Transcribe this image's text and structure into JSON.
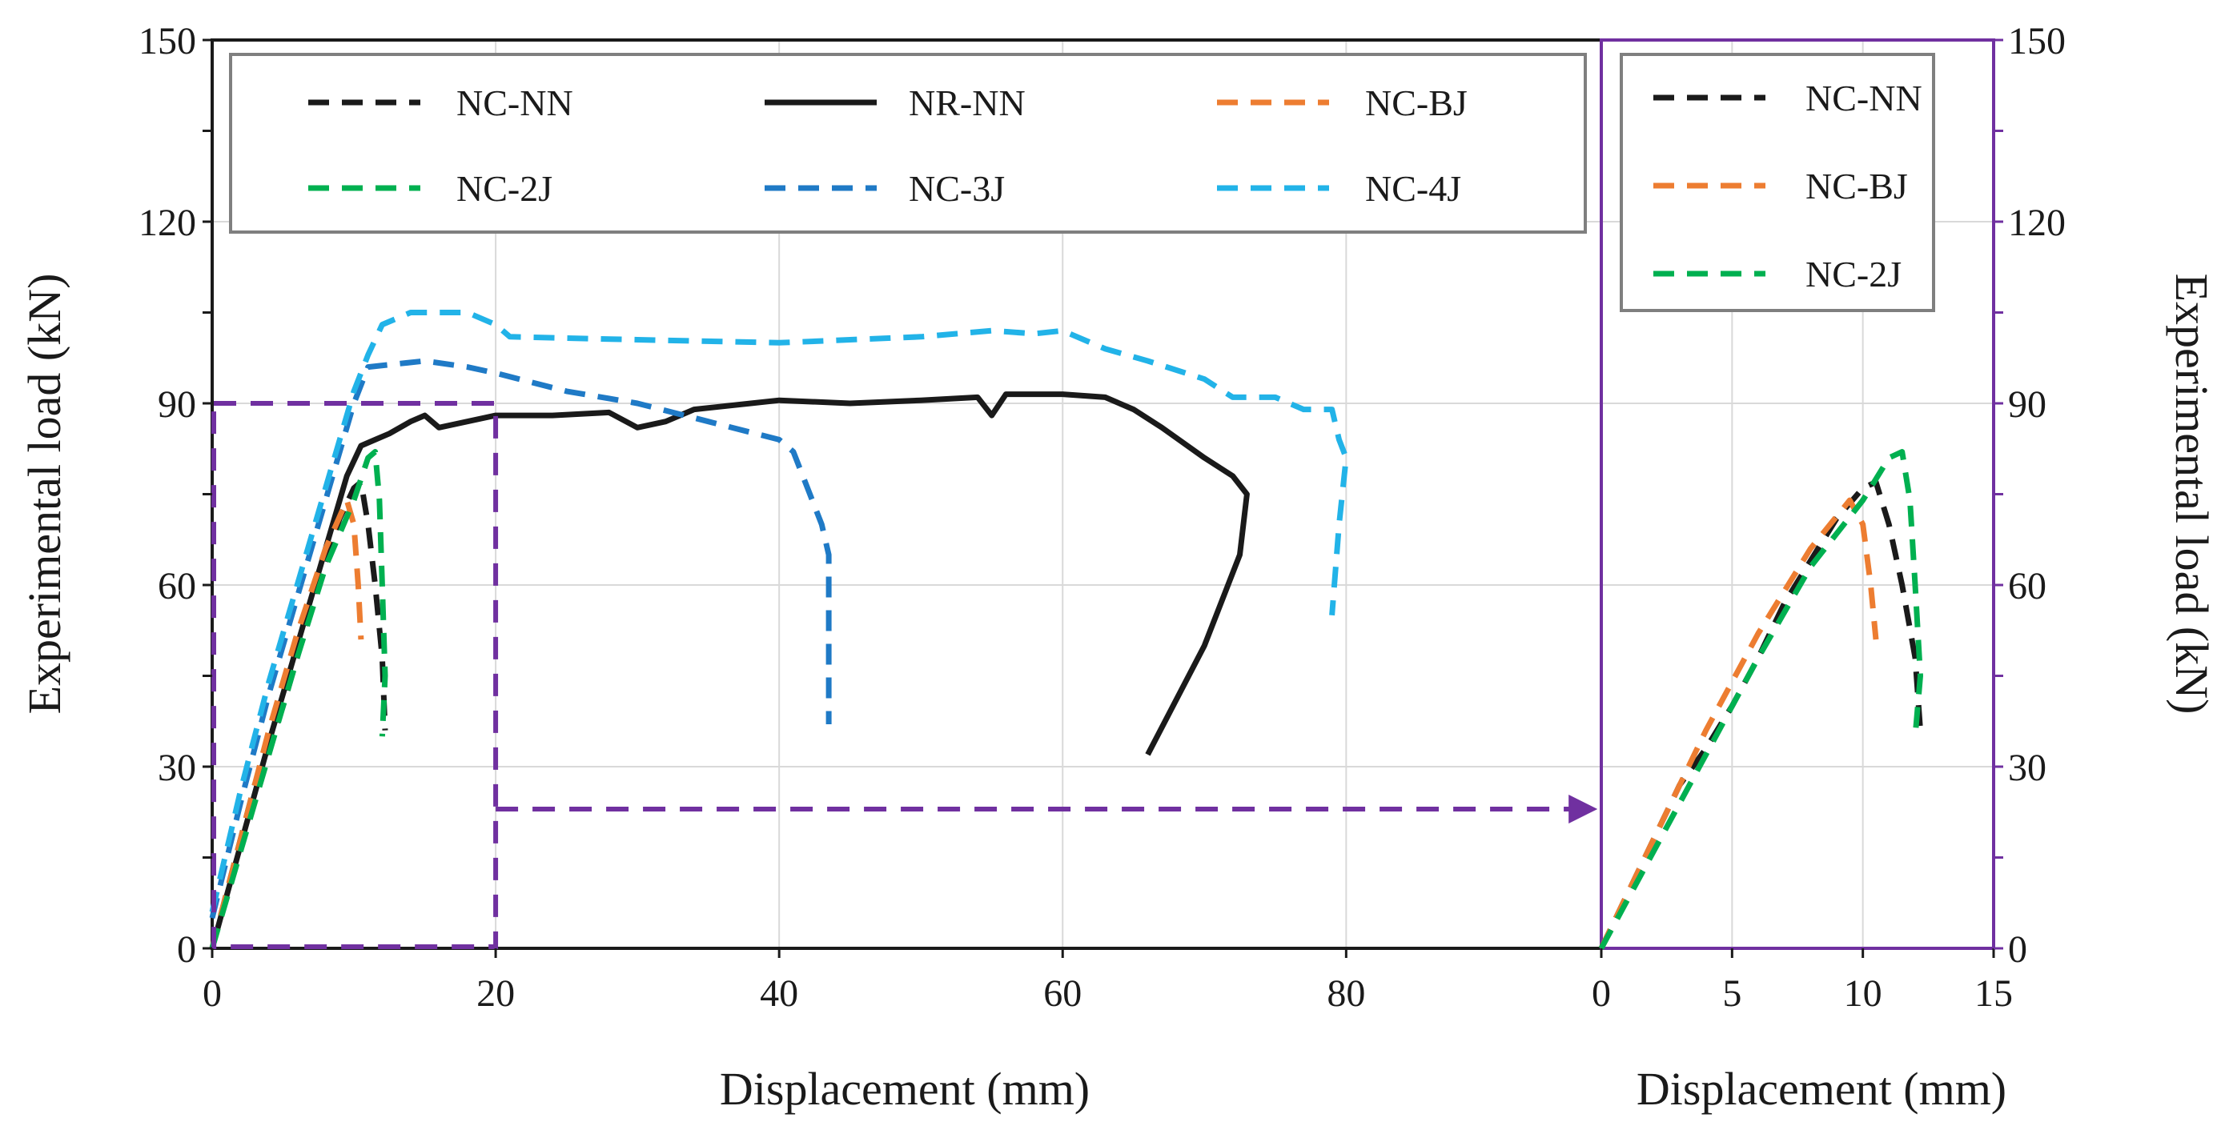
{
  "colors": {
    "NC-NN": "#1a1a1a",
    "NR-NN": "#1a1a1a",
    "NC-BJ": "#ed7d31",
    "NC-2J": "#00b050",
    "NC-3J": "#1f7ac6",
    "NC-4J": "#22b3e8",
    "highlight": "#7030a0",
    "grid": "#d9d9d9"
  },
  "chart_data": [
    {
      "id": "main",
      "type": "line",
      "xlabel": "Displacement (mm)",
      "ylabel": "Experimental load (kN)",
      "xlim": [
        0,
        98
      ],
      "ylim": [
        0,
        150
      ],
      "x_ticks": [
        "0",
        "20",
        "40",
        "60",
        "80"
      ],
      "y_ticks": [
        "0",
        "30",
        "60",
        "90",
        "120",
        "150"
      ],
      "legend_position": "top",
      "legend": [
        "NC-NN",
        "NR-NN",
        "NC-BJ",
        "NC-2J",
        "NC-3J",
        "NC-4J"
      ],
      "annotations": [
        {
          "type": "highlight-box",
          "x_range": [
            0,
            20
          ],
          "y_range": [
            0,
            90
          ],
          "meaning": "zoomed region shown in inset"
        },
        {
          "type": "arrow",
          "at_y": 23,
          "from_x": 20,
          "to": "inset"
        }
      ],
      "series": [
        {
          "name": "NC-NN",
          "style": "dashed",
          "points": [
            [
              0,
              0
            ],
            [
              1,
              9
            ],
            [
              2,
              18
            ],
            [
              3,
              27
            ],
            [
              4,
              33
            ],
            [
              5,
              40
            ],
            [
              6,
              48
            ],
            [
              7,
              57
            ],
            [
              8,
              64
            ],
            [
              9,
              71
            ],
            [
              10,
              76
            ],
            [
              10.5,
              77
            ],
            [
              11,
              70
            ],
            [
              11.5,
              60
            ],
            [
              12,
              48
            ],
            [
              12.2,
              36
            ]
          ]
        },
        {
          "name": "NR-NN",
          "style": "solid",
          "points": [
            [
              0,
              0
            ],
            [
              2,
              17
            ],
            [
              4,
              34
            ],
            [
              6,
              50
            ],
            [
              8,
              66
            ],
            [
              9.5,
              78
            ],
            [
              10.5,
              83
            ],
            [
              11.5,
              84
            ],
            [
              12.5,
              85
            ],
            [
              14,
              87
            ],
            [
              15,
              88
            ],
            [
              16,
              86
            ],
            [
              18,
              87
            ],
            [
              20,
              88
            ],
            [
              24,
              88
            ],
            [
              28,
              88.5
            ],
            [
              30,
              86
            ],
            [
              32,
              87
            ],
            [
              34,
              89
            ],
            [
              38,
              90
            ],
            [
              40,
              90.5
            ],
            [
              45,
              90
            ],
            [
              50,
              90.5
            ],
            [
              54,
              91
            ],
            [
              55,
              88
            ],
            [
              56,
              91.5
            ],
            [
              60,
              91.5
            ],
            [
              63,
              91
            ],
            [
              65,
              89
            ],
            [
              67,
              86
            ],
            [
              70,
              81
            ],
            [
              72,
              78
            ],
            [
              73,
              75
            ],
            [
              72.5,
              65
            ],
            [
              70,
              50
            ],
            [
              66,
              32
            ]
          ]
        },
        {
          "name": "NC-BJ",
          "style": "dashed",
          "points": [
            [
              0,
              0
            ],
            [
              2,
              18
            ],
            [
              4,
              36
            ],
            [
              6,
              52
            ],
            [
              8,
              66
            ],
            [
              9.5,
              74
            ],
            [
              10,
              70
            ],
            [
              10.3,
              60
            ],
            [
              10.5,
              51
            ]
          ]
        },
        {
          "name": "NC-2J",
          "style": "dashed",
          "points": [
            [
              0,
              0
            ],
            [
              2,
              16
            ],
            [
              4,
              32
            ],
            [
              6,
              48
            ],
            [
              8,
              63
            ],
            [
              10,
              74
            ],
            [
              11,
              81
            ],
            [
              11.5,
              82
            ],
            [
              11.8,
              74
            ],
            [
              12,
              60
            ],
            [
              12.2,
              45
            ],
            [
              12,
              35
            ]
          ]
        },
        {
          "name": "NC-3J",
          "style": "dashed",
          "points": [
            [
              0,
              5
            ],
            [
              2,
              24
            ],
            [
              4,
              42
            ],
            [
              6,
              58
            ],
            [
              8,
              74
            ],
            [
              10,
              90
            ],
            [
              11,
              96
            ],
            [
              15,
              97
            ],
            [
              18,
              96
            ],
            [
              20,
              95
            ],
            [
              25,
              92
            ],
            [
              30,
              90
            ],
            [
              35,
              87
            ],
            [
              40,
              84
            ],
            [
              41,
              82
            ],
            [
              42,
              76
            ],
            [
              43,
              70
            ],
            [
              43.5,
              65
            ],
            [
              43.5,
              50
            ],
            [
              43.5,
              37
            ]
          ]
        },
        {
          "name": "NC-4J",
          "style": "dashed",
          "points": [
            [
              0,
              6
            ],
            [
              2,
              26
            ],
            [
              4,
              44
            ],
            [
              6,
              60
            ],
            [
              8,
              76
            ],
            [
              10,
              92
            ],
            [
              11,
              98
            ],
            [
              12,
              103
            ],
            [
              14,
              105
            ],
            [
              18,
              105
            ],
            [
              20,
              103
            ],
            [
              21,
              101
            ],
            [
              30,
              100.5
            ],
            [
              40,
              100
            ],
            [
              50,
              101
            ],
            [
              55,
              102
            ],
            [
              58,
              101.5
            ],
            [
              60,
              102
            ],
            [
              63,
              99
            ],
            [
              66,
              97
            ],
            [
              70,
              94
            ],
            [
              72,
              91
            ],
            [
              75,
              91
            ],
            [
              77,
              89
            ],
            [
              79,
              89
            ],
            [
              79.5,
              84
            ],
            [
              80,
              81
            ],
            [
              79.5,
              70
            ],
            [
              79,
              55
            ]
          ]
        }
      ]
    },
    {
      "id": "inset",
      "type": "line",
      "xlabel": "Displacement (mm)",
      "ylabel": "Experimental load (kN)",
      "xlim": [
        0,
        15
      ],
      "ylim": [
        0,
        150
      ],
      "x_ticks": [
        "0",
        "5",
        "10",
        "15"
      ],
      "y_ticks": [
        "0",
        "30",
        "60",
        "90",
        "120",
        "150"
      ],
      "legend_position": "top-left",
      "legend": [
        "NC-NN",
        "NC-BJ",
        "NC-2J"
      ],
      "series": [
        {
          "name": "NC-NN",
          "style": "dashed",
          "points": [
            [
              0,
              0
            ],
            [
              1,
              9
            ],
            [
              2,
              18
            ],
            [
              3,
              27
            ],
            [
              4,
              33
            ],
            [
              5,
              40
            ],
            [
              6,
              48
            ],
            [
              7,
              57
            ],
            [
              8,
              64
            ],
            [
              9,
              71
            ],
            [
              10,
              76
            ],
            [
              10.5,
              77
            ],
            [
              11,
              70
            ],
            [
              11.5,
              60
            ],
            [
              12,
              48
            ],
            [
              12.2,
              36
            ]
          ]
        },
        {
          "name": "NC-BJ",
          "style": "dashed",
          "points": [
            [
              0,
              0
            ],
            [
              2,
              18
            ],
            [
              4,
              36
            ],
            [
              6,
              52
            ],
            [
              8,
              66
            ],
            [
              9.5,
              74
            ],
            [
              10,
              70
            ],
            [
              10.3,
              60
            ],
            [
              10.5,
              51
            ]
          ]
        },
        {
          "name": "NC-2J",
          "style": "dashed",
          "points": [
            [
              0,
              0
            ],
            [
              2,
              16
            ],
            [
              4,
              32
            ],
            [
              6,
              48
            ],
            [
              8,
              63
            ],
            [
              10,
              74
            ],
            [
              11,
              81
            ],
            [
              11.5,
              82
            ],
            [
              11.8,
              74
            ],
            [
              12,
              60
            ],
            [
              12.2,
              45
            ],
            [
              12,
              35
            ]
          ]
        }
      ]
    }
  ]
}
